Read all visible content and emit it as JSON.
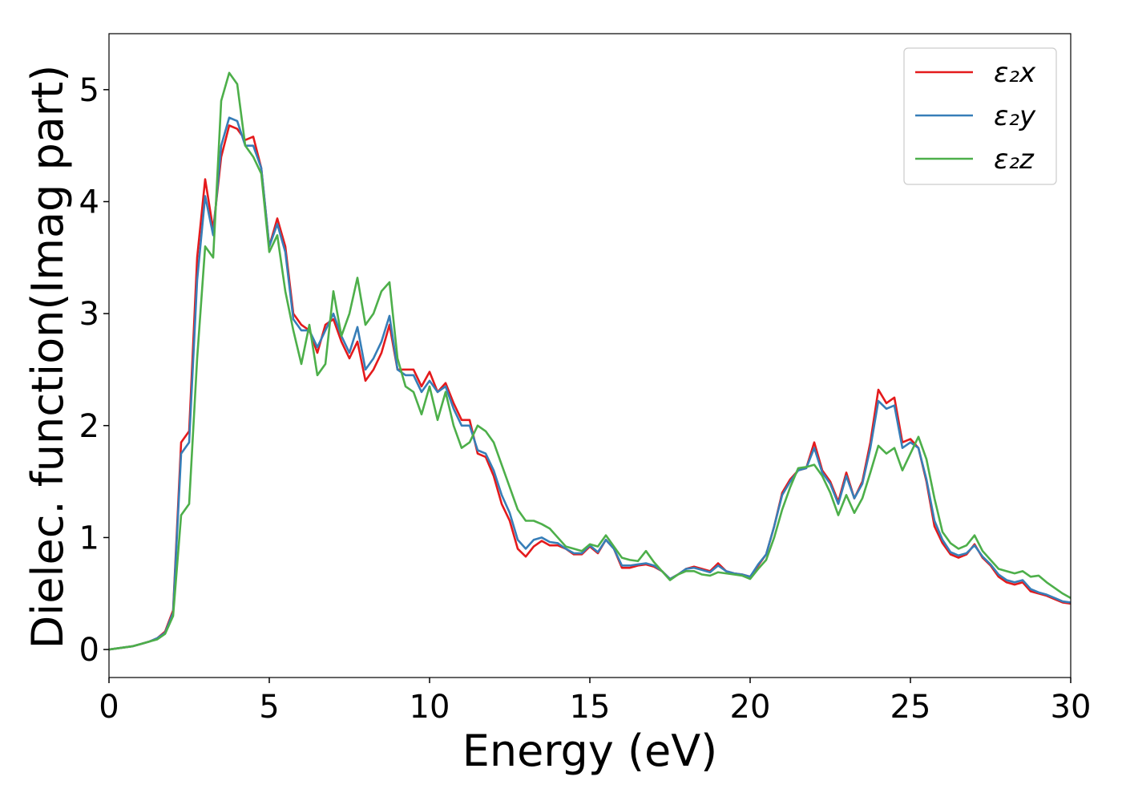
{
  "chart_data": {
    "type": "line",
    "x_label": "Energy (eV)",
    "y_label": "Dielec. function(Imag part)",
    "x": [
      0,
      0.25,
      0.5,
      0.75,
      1,
      1.25,
      1.5,
      1.75,
      2,
      2.25,
      2.5,
      2.75,
      3,
      3.25,
      3.5,
      3.75,
      4,
      4.25,
      4.5,
      4.75,
      5,
      5.25,
      5.5,
      5.75,
      6,
      6.25,
      6.5,
      6.75,
      7,
      7.25,
      7.5,
      7.75,
      8,
      8.25,
      8.5,
      8.75,
      9,
      9.25,
      9.5,
      9.75,
      10,
      10.25,
      10.5,
      10.75,
      11,
      11.25,
      11.5,
      11.75,
      12,
      12.25,
      12.5,
      12.75,
      13,
      13.25,
      13.5,
      13.75,
      14,
      14.25,
      14.5,
      14.75,
      15,
      15.25,
      15.5,
      15.75,
      16,
      16.25,
      16.5,
      16.75,
      17,
      17.25,
      17.5,
      17.75,
      18,
      18.25,
      18.5,
      18.75,
      19,
      19.25,
      19.5,
      19.75,
      20,
      20.25,
      20.5,
      20.75,
      21,
      21.25,
      21.5,
      21.75,
      22,
      22.25,
      22.5,
      22.75,
      23,
      23.25,
      23.5,
      23.75,
      24,
      24.25,
      24.5,
      24.75,
      25,
      25.25,
      25.5,
      25.75,
      26,
      26.25,
      26.5,
      26.75,
      27,
      27.25,
      27.5,
      27.75,
      28,
      28.25,
      28.5,
      28.75,
      29,
      29.25,
      29.5,
      29.75,
      30
    ],
    "series": [
      {
        "name": "ε₂x",
        "color": "#e41a1c",
        "values": [
          0,
          0.01,
          0.02,
          0.03,
          0.05,
          0.07,
          0.1,
          0.16,
          0.35,
          1.85,
          1.95,
          3.5,
          4.2,
          3.75,
          4.4,
          4.68,
          4.65,
          4.55,
          4.58,
          4.3,
          3.6,
          3.85,
          3.6,
          3.0,
          2.9,
          2.85,
          2.65,
          2.9,
          2.95,
          2.75,
          2.6,
          2.75,
          2.4,
          2.5,
          2.65,
          2.9,
          2.5,
          2.5,
          2.5,
          2.35,
          2.48,
          2.3,
          2.38,
          2.2,
          2.05,
          2.05,
          1.75,
          1.72,
          1.55,
          1.3,
          1.15,
          0.9,
          0.83,
          0.92,
          0.97,
          0.93,
          0.93,
          0.9,
          0.85,
          0.85,
          0.92,
          0.86,
          0.98,
          0.9,
          0.73,
          0.73,
          0.75,
          0.76,
          0.74,
          0.7,
          0.63,
          0.67,
          0.72,
          0.74,
          0.72,
          0.7,
          0.77,
          0.7,
          0.68,
          0.67,
          0.65,
          0.75,
          0.85,
          1.1,
          1.4,
          1.52,
          1.6,
          1.62,
          1.85,
          1.6,
          1.5,
          1.32,
          1.58,
          1.35,
          1.5,
          1.85,
          2.32,
          2.2,
          2.25,
          1.85,
          1.88,
          1.8,
          1.5,
          1.1,
          0.95,
          0.85,
          0.82,
          0.85,
          0.94,
          0.82,
          0.75,
          0.65,
          0.6,
          0.58,
          0.6,
          0.52,
          0.5,
          0.48,
          0.45,
          0.42,
          0.41
        ]
      },
      {
        "name": "ε₂y",
        "color": "#377eb8",
        "values": [
          0,
          0.01,
          0.02,
          0.03,
          0.05,
          0.07,
          0.1,
          0.15,
          0.33,
          1.75,
          1.85,
          3.3,
          4.05,
          3.7,
          4.5,
          4.75,
          4.72,
          4.5,
          4.5,
          4.3,
          3.6,
          3.8,
          3.55,
          2.95,
          2.85,
          2.85,
          2.7,
          2.85,
          3.0,
          2.8,
          2.65,
          2.88,
          2.5,
          2.6,
          2.75,
          2.98,
          2.5,
          2.45,
          2.45,
          2.3,
          2.4,
          2.3,
          2.35,
          2.15,
          2.0,
          2.0,
          1.78,
          1.75,
          1.6,
          1.38,
          1.22,
          0.98,
          0.9,
          0.98,
          1.0,
          0.96,
          0.95,
          0.9,
          0.86,
          0.86,
          0.93,
          0.87,
          0.98,
          0.9,
          0.75,
          0.75,
          0.76,
          0.77,
          0.75,
          0.7,
          0.63,
          0.67,
          0.72,
          0.73,
          0.71,
          0.69,
          0.75,
          0.7,
          0.68,
          0.67,
          0.65,
          0.76,
          0.85,
          1.1,
          1.38,
          1.5,
          1.6,
          1.62,
          1.8,
          1.58,
          1.48,
          1.3,
          1.55,
          1.35,
          1.48,
          1.8,
          2.22,
          2.15,
          2.18,
          1.8,
          1.85,
          1.8,
          1.52,
          1.15,
          0.98,
          0.87,
          0.84,
          0.86,
          0.93,
          0.83,
          0.76,
          0.67,
          0.62,
          0.6,
          0.62,
          0.54,
          0.51,
          0.49,
          0.46,
          0.43,
          0.42
        ]
      },
      {
        "name": "ε₂z",
        "color": "#4daf4a",
        "values": [
          0,
          0.01,
          0.02,
          0.03,
          0.05,
          0.07,
          0.09,
          0.14,
          0.3,
          1.2,
          1.3,
          2.6,
          3.6,
          3.5,
          4.9,
          5.15,
          5.05,
          4.5,
          4.4,
          4.25,
          3.55,
          3.7,
          3.2,
          2.85,
          2.55,
          2.9,
          2.45,
          2.55,
          3.2,
          2.8,
          3.0,
          3.32,
          2.9,
          3.0,
          3.2,
          3.28,
          2.6,
          2.35,
          2.3,
          2.1,
          2.35,
          2.05,
          2.3,
          2.0,
          1.8,
          1.85,
          2.0,
          1.95,
          1.85,
          1.65,
          1.45,
          1.25,
          1.15,
          1.15,
          1.12,
          1.08,
          1.0,
          0.92,
          0.9,
          0.88,
          0.94,
          0.92,
          1.02,
          0.92,
          0.82,
          0.8,
          0.79,
          0.88,
          0.78,
          0.7,
          0.62,
          0.67,
          0.7,
          0.7,
          0.67,
          0.66,
          0.69,
          0.68,
          0.67,
          0.66,
          0.63,
          0.72,
          0.8,
          1.0,
          1.25,
          1.45,
          1.62,
          1.63,
          1.65,
          1.55,
          1.4,
          1.2,
          1.38,
          1.22,
          1.35,
          1.58,
          1.82,
          1.75,
          1.8,
          1.6,
          1.75,
          1.9,
          1.7,
          1.35,
          1.05,
          0.95,
          0.9,
          0.93,
          1.02,
          0.88,
          0.8,
          0.72,
          0.7,
          0.68,
          0.7,
          0.65,
          0.66,
          0.6,
          0.55,
          0.5,
          0.46
        ]
      }
    ],
    "xlim": [
      0,
      30
    ],
    "xticks": [
      0,
      5,
      10,
      15,
      20,
      25,
      30
    ],
    "ylim": [
      -0.25,
      5.5
    ],
    "yticks": [
      0,
      1,
      2,
      3,
      4,
      5
    ],
    "legend": "upper right"
  }
}
